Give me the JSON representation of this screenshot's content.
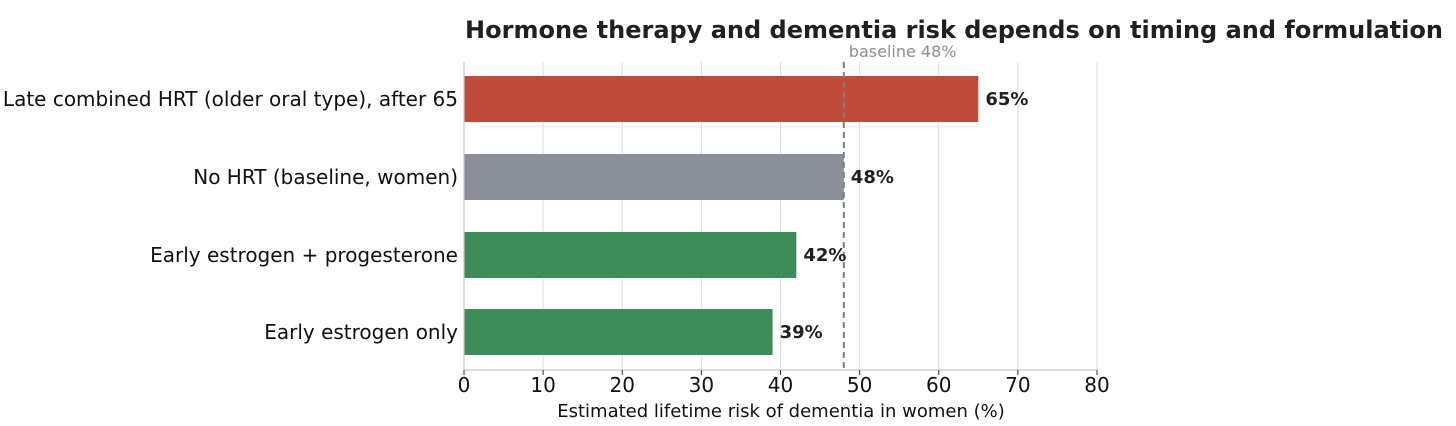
{
  "chart_data": {
    "type": "bar",
    "orientation": "horizontal",
    "title": "Hormone therapy and dementia risk depends on timing and formulation",
    "xlabel": "Estimated lifetime risk of dementia in women (%)",
    "ylabel": "",
    "xlim": [
      0,
      80
    ],
    "xticks": [
      0,
      10,
      20,
      30,
      40,
      50,
      60,
      70,
      80
    ],
    "grid": "vertical",
    "categories": [
      "Late combined HRT (older oral type), after 65",
      "No HRT (baseline, women)",
      "Early estrogen + progesterone",
      "Early estrogen only"
    ],
    "values": [
      65,
      48,
      42,
      39
    ],
    "value_labels": [
      "65%",
      "48%",
      "42%",
      "39%"
    ],
    "colors": [
      "#c14b3a",
      "#8a8f99",
      "#3d8c5a",
      "#3d8c5a"
    ],
    "reference_line": {
      "value": 48,
      "label": "baseline 48%",
      "color": "#7f7f7f",
      "style": "dashed"
    }
  }
}
